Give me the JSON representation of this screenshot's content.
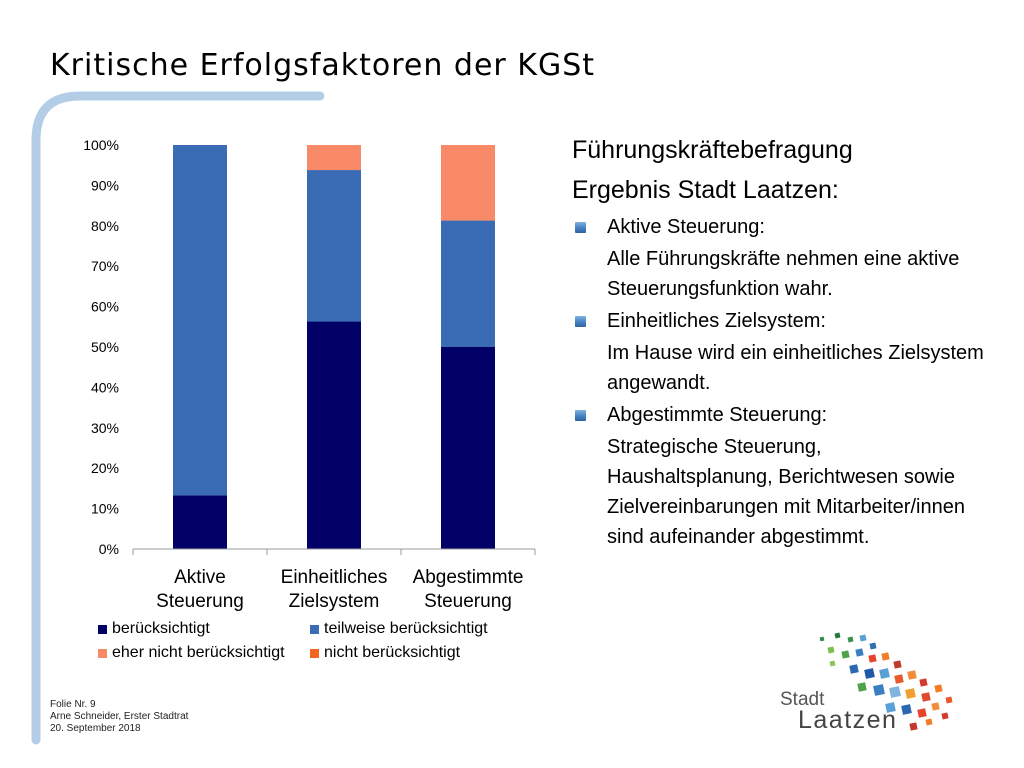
{
  "slide": {
    "title": "Kritische Erfolgsfaktoren  der KGSt"
  },
  "colors": {
    "accent_light_blue": "#b3cde6",
    "dark_navy": "#000066",
    "medium_blue": "#3a6cb5",
    "salmon": "#f98a67",
    "orange": "#f26522"
  },
  "chart_data": {
    "type": "bar",
    "stacked": true,
    "normalized_percent": true,
    "categories": [
      "Aktive Steuerung",
      "Einheitliches Zielsystem",
      "Abgestimmte Steuerung"
    ],
    "category_label_lines": [
      [
        "Aktive",
        "Steuerung"
      ],
      [
        "Einheitliches",
        "Zielsystem"
      ],
      [
        "Abgestimmte",
        "Steuerung"
      ]
    ],
    "series": [
      {
        "name": "berücksichtigt",
        "color": "#000066",
        "values": [
          13.3,
          56.3,
          50
        ]
      },
      {
        "name": "teilweise berücksichtigt",
        "color": "#3a6cb5",
        "values": [
          86.7,
          37.5,
          31.3
        ]
      },
      {
        "name": "eher nicht berücksichtigt",
        "color": "#f98a67",
        "values": [
          0,
          6.2,
          18.7
        ]
      },
      {
        "name": "nicht berücksichtigt",
        "color": "#f26522",
        "values": [
          0,
          0,
          0
        ]
      }
    ],
    "ylim": [
      0,
      100
    ],
    "yticks": [
      0,
      10,
      20,
      30,
      40,
      50,
      60,
      70,
      80,
      90,
      100
    ],
    "ytick_labels": [
      "0%",
      "10%",
      "20%",
      "30%",
      "40%",
      "50%",
      "60%",
      "70%",
      "80%",
      "90%",
      "100%"
    ],
    "grid": false,
    "legend_position": "bottom"
  },
  "content": {
    "heading1": "Führungskräftebefragung",
    "heading2": "Ergebnis Stadt Laatzen:",
    "bullets": [
      {
        "label": "Aktive Steuerung:",
        "description": "Alle Führungskräfte nehmen eine aktive Steuerungsfunktion wahr."
      },
      {
        "label": "Einheitliches Zielsystem:",
        "description": "Im Hause wird ein einheitliches Zielsystem angewandt."
      },
      {
        "label": "Abgestimmte Steuerung:",
        "description": "Strategische Steuerung, Haushaltsplanung, Berichtwesen sowie Zielvereinbarungen mit Mitarbeiter/innen sind aufeinander abgestimmt."
      }
    ]
  },
  "footer": {
    "line1": "Folie Nr. 9",
    "line2": "Arne Schneider, Erster Stadtrat",
    "line3": "20. September 2018"
  },
  "logo": {
    "line1": "Stadt",
    "line2": "Laatzen"
  }
}
